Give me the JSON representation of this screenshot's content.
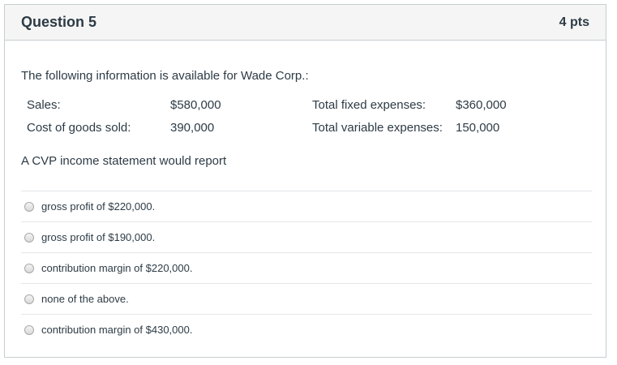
{
  "question": {
    "title": "Question 5",
    "points": "4 pts",
    "intro": "The following information is available for Wade Corp.:",
    "info_rows": [
      {
        "label1": "Sales:",
        "value1": "$580,000",
        "label2": "Total fixed expenses:",
        "value2": "$360,000"
      },
      {
        "label1": "Cost of goods sold:",
        "value1": "390,000",
        "label2": "Total variable expenses:",
        "value2": "150,000"
      }
    ],
    "prompt": "A CVP income statement would report",
    "answers": [
      {
        "label": "gross profit of $220,000."
      },
      {
        "label": "gross profit of $190,000."
      },
      {
        "label": "contribution margin of $220,000."
      },
      {
        "label": "none of the above."
      },
      {
        "label": "contribution margin of $430,000."
      }
    ]
  }
}
